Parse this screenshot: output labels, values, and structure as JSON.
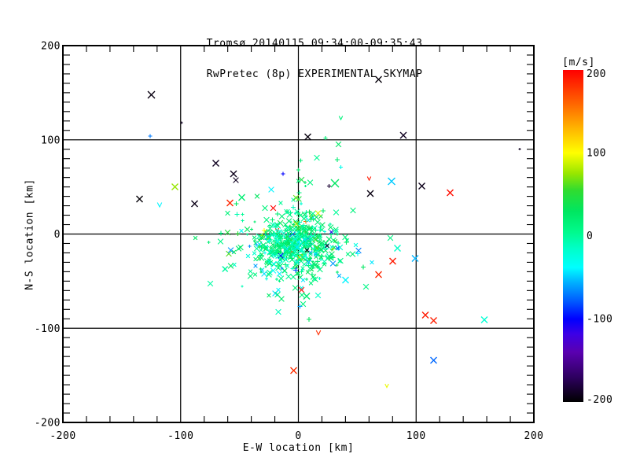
{
  "chart_data": {
    "type": "scatter",
    "title_line1": "Tromsø 20140115 09:34:00-09:35:43",
    "title_line2": "RwPretec (8p) EXPERIMENTAL SKYMAP",
    "xlabel": "E-W location [km]",
    "ylabel": "N-S location [km]",
    "xlim": [
      -200,
      200
    ],
    "ylim": [
      -200,
      200
    ],
    "xticks": [
      -200,
      -100,
      0,
      100,
      200
    ],
    "yticks": [
      -200,
      -100,
      0,
      100,
      200
    ],
    "x_minor_step": 20,
    "y_minor_step": 10,
    "grid_x": [
      -100,
      0,
      100
    ],
    "grid_y": [
      -100,
      0,
      100
    ],
    "grid_on": true,
    "legend_position": "none",
    "colorbar": {
      "label": "[m/s]",
      "ticks": [
        200,
        100,
        0,
        -100,
        -200
      ],
      "min": -200,
      "max": 200
    },
    "colormap": [
      [
        -200,
        "#000000"
      ],
      [
        -170,
        "#2e0060"
      ],
      [
        -140,
        "#5a00b0"
      ],
      [
        -118,
        "#3c00e6"
      ],
      [
        -100,
        "#0000ff"
      ],
      [
        -80,
        "#0055ff"
      ],
      [
        -55,
        "#00b4ff"
      ],
      [
        -38,
        "#00ffff"
      ],
      [
        -15,
        "#00ffc8"
      ],
      [
        5,
        "#00fa8c"
      ],
      [
        30,
        "#00e660"
      ],
      [
        55,
        "#30dc30"
      ],
      [
        75,
        "#96e600"
      ],
      [
        100,
        "#ffff00"
      ],
      [
        130,
        "#ffb400"
      ],
      [
        160,
        "#ff6400"
      ],
      [
        200,
        "#ff0000"
      ]
    ],
    "points": [
      [
        -125,
        148,
        -195,
        "x",
        8
      ],
      [
        -99,
        118,
        -190,
        "d",
        3
      ],
      [
        -126,
        104,
        -70,
        "+",
        4
      ],
      [
        -70,
        75,
        -190,
        "x",
        7
      ],
      [
        -55,
        64,
        -192,
        "x",
        7
      ],
      [
        -53,
        57,
        -190,
        "x",
        6
      ],
      [
        -105,
        50,
        75,
        "x",
        7
      ],
      [
        -135,
        37,
        -198,
        "x",
        7
      ],
      [
        -118,
        31,
        -40,
        "v",
        5
      ],
      [
        -88,
        32,
        -193,
        "x",
        7
      ],
      [
        -58,
        33,
        185,
        "x",
        7
      ],
      [
        -48,
        39,
        20,
        "x",
        7
      ],
      [
        -13,
        64,
        -100,
        "+",
        4
      ],
      [
        -23,
        47,
        -40,
        "x",
        6
      ],
      [
        68,
        164,
        -197,
        "x",
        7
      ],
      [
        36,
        123,
        15,
        "v",
        4
      ],
      [
        89,
        105,
        -190,
        "x",
        7
      ],
      [
        8,
        103,
        -196,
        "x",
        7
      ],
      [
        34,
        95,
        25,
        "x",
        6
      ],
      [
        23,
        102,
        18,
        "+",
        4
      ],
      [
        33,
        79,
        22,
        "+",
        5
      ],
      [
        36,
        71,
        -30,
        "+",
        4
      ],
      [
        31,
        54,
        30,
        "x",
        9
      ],
      [
        26,
        51,
        -185,
        "+",
        4
      ],
      [
        60,
        59,
        190,
        "v",
        4
      ],
      [
        79,
        56,
        -50,
        "x",
        8
      ],
      [
        61,
        43,
        -195,
        "x",
        7
      ],
      [
        105,
        51,
        -192,
        "x",
        7
      ],
      [
        129,
        44,
        195,
        "x",
        7
      ],
      [
        188,
        90,
        -190,
        "d",
        3
      ],
      [
        -4,
        -145,
        182,
        "x",
        7
      ],
      [
        -6,
        -13,
        190,
        "x",
        9
      ],
      [
        -18,
        4,
        185,
        "v",
        4
      ],
      [
        -49,
        -14,
        25,
        "x",
        6
      ],
      [
        -29,
        -42,
        -45,
        "x",
        6
      ],
      [
        78,
        -4,
        10,
        "x",
        6
      ],
      [
        84,
        -15,
        -15,
        "x",
        7
      ],
      [
        80,
        -29,
        190,
        "x",
        7
      ],
      [
        99,
        -26,
        -55,
        "x",
        7
      ],
      [
        68,
        -43,
        185,
        "x",
        7
      ],
      [
        40,
        -49,
        -40,
        "x",
        7
      ],
      [
        108,
        -86,
        190,
        "x",
        7
      ],
      [
        115,
        -92,
        188,
        "x",
        7
      ],
      [
        158,
        -91,
        -20,
        "x",
        7
      ],
      [
        17,
        -105,
        182,
        "v",
        5
      ],
      [
        115,
        -134,
        -75,
        "x",
        7
      ],
      [
        75,
        -161,
        95,
        "v",
        4
      ],
      [
        2,
        78,
        20,
        "+",
        4
      ],
      [
        0,
        68,
        25,
        "+",
        4
      ],
      [
        -60,
        22,
        15,
        "x",
        5
      ],
      [
        -35,
        40,
        30,
        "x",
        5
      ],
      [
        7,
        -66,
        20,
        "x",
        7
      ],
      [
        -16,
        -50,
        15,
        "d",
        3
      ]
    ],
    "cluster": {
      "seed": 77,
      "components": [
        {
          "count": 430,
          "cx": -3,
          "cy": -10,
          "sx": 18,
          "sy": 16
        },
        {
          "count": 120,
          "cx": -5,
          "cy": -18,
          "sx": 32,
          "sy": 26
        },
        {
          "count": 40,
          "cx": 1,
          "cy": -5,
          "sx": 5,
          "sy": 34
        }
      ],
      "value_mix": [
        [
          0.58,
          16,
          12
        ],
        [
          0.82,
          -12,
          10
        ],
        [
          0.9,
          45,
          20
        ],
        [
          0.955,
          -55,
          22
        ],
        [
          1.0,
          0,
          110
        ]
      ],
      "marker_mix": [
        [
          0.38,
          "x",
          6
        ],
        [
          0.66,
          "x",
          4
        ],
        [
          0.8,
          "+",
          5
        ],
        [
          0.92,
          "+",
          3
        ],
        [
          1.0,
          "d",
          2
        ]
      ]
    }
  }
}
